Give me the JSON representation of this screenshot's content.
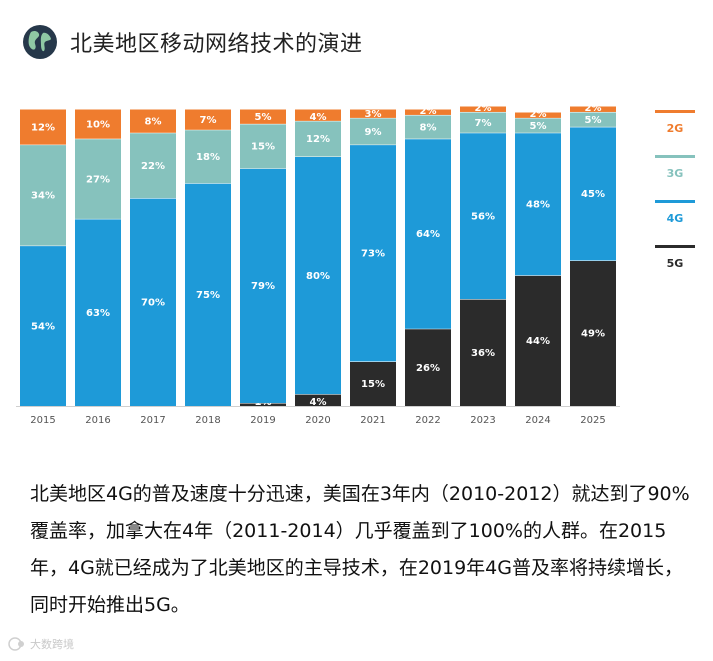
{
  "header": {
    "title": "北美地区移动网络技术的演进",
    "icon": "globe-icon"
  },
  "colors": {
    "2G": "#ef7c2e",
    "3G": "#86c2bd",
    "4G": "#1e9ad8",
    "5G": "#2b2b2b"
  },
  "chart_data": {
    "type": "bar",
    "stacked": true,
    "normalized": true,
    "title": "北美地区移动网络技术的演进",
    "categories": [
      "2015",
      "2016",
      "2017",
      "2018",
      "2019",
      "2020",
      "2021",
      "2022",
      "2023",
      "2024",
      "2025"
    ],
    "series": [
      {
        "name": "5G",
        "values": [
          0,
          0,
          0,
          0,
          1,
          4,
          15,
          26,
          36,
          44,
          49
        ]
      },
      {
        "name": "4G",
        "values": [
          54,
          63,
          70,
          75,
          79,
          80,
          73,
          64,
          56,
          48,
          45
        ]
      },
      {
        "name": "3G",
        "values": [
          34,
          27,
          22,
          18,
          15,
          12,
          9,
          8,
          7,
          5,
          5
        ]
      },
      {
        "name": "2G",
        "values": [
          12,
          10,
          8,
          7,
          5,
          4,
          3,
          2,
          2,
          2,
          2
        ]
      }
    ],
    "value_suffix": "%",
    "legend": [
      "2G",
      "3G",
      "4G",
      "5G"
    ],
    "legend_position": "right",
    "ylim": [
      0,
      100
    ]
  },
  "paragraph": "北美地区4G的普及速度十分迅速，美国在3年内（2010-2012）就达到了90%覆盖率，加拿大在4年（2011-2014）几乎覆盖到了100%的人群。在2015年，4G就已经成为了北美地区的主导技术，在2019年4G普及率将持续增长，同时开始推出5G。",
  "watermark": "大数跨境"
}
